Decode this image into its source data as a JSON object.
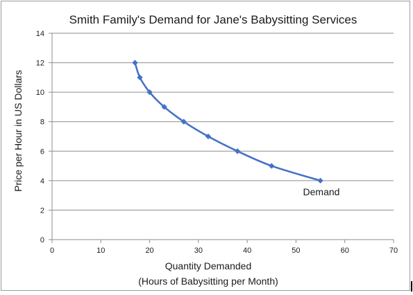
{
  "chart_data": {
    "type": "line",
    "title": "Smith Family's Demand for Jane's Babysitting Services",
    "xlabel": "Quantity Demanded",
    "xlabel_line2": "(Hours of Babysitting per Month)",
    "ylabel": "Price per Hour in US Dollars",
    "xlim": [
      0,
      70
    ],
    "ylim": [
      0,
      14
    ],
    "x_ticks": [
      0,
      10,
      20,
      30,
      40,
      50,
      60,
      70
    ],
    "y_ticks": [
      0,
      2,
      4,
      6,
      8,
      10,
      12,
      14
    ],
    "grid": "horizontal",
    "series": [
      {
        "name": "Demand",
        "color": "#4472c4",
        "marker": "diamond",
        "points": [
          {
            "x": 17,
            "y": 12
          },
          {
            "x": 18,
            "y": 11
          },
          {
            "x": 20,
            "y": 10
          },
          {
            "x": 23,
            "y": 9
          },
          {
            "x": 27,
            "y": 8
          },
          {
            "x": 32,
            "y": 7
          },
          {
            "x": 38,
            "y": 6
          },
          {
            "x": 45,
            "y": 5
          },
          {
            "x": 55,
            "y": 4
          }
        ]
      }
    ],
    "annotations": [
      {
        "text": "Demand",
        "near": "last-point-below"
      }
    ]
  }
}
